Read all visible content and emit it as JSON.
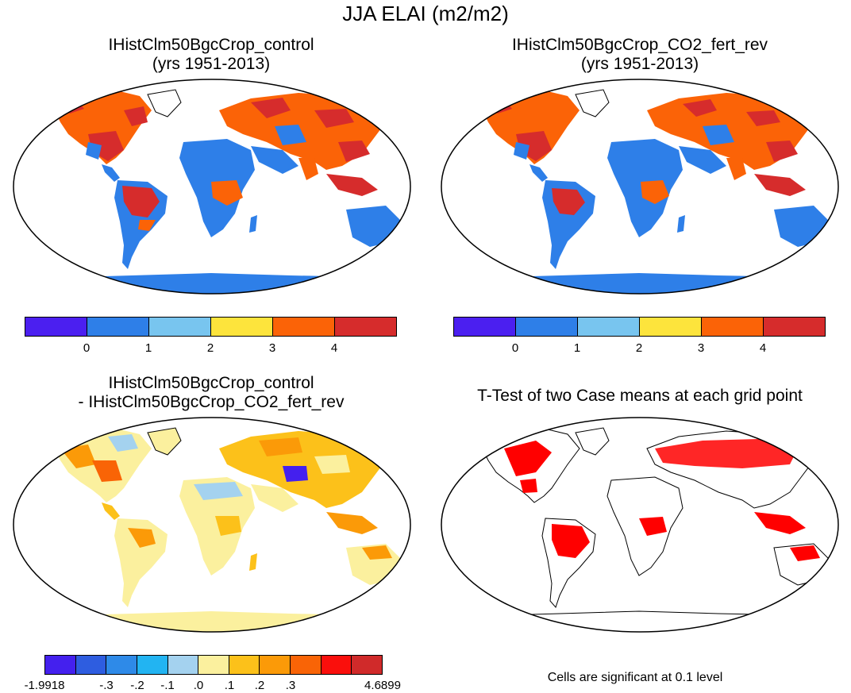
{
  "title": "JJA ELAI (m2/m2)",
  "panels": [
    {
      "id": "control",
      "title_line1": "IHistClm50BgcCrop_control",
      "title_line2": "(yrs 1951-2013)"
    },
    {
      "id": "co2",
      "title_line1": "IHistClm50BgcCrop_CO2_fert_rev",
      "title_line2": "(yrs 1951-2013)"
    },
    {
      "id": "diff",
      "title_line1": "IHistClm50BgcCrop_control",
      "title_line2": "- IHistClm50BgcCrop_CO2_fert_rev"
    },
    {
      "id": "ttest",
      "title_line1": "T-Test of two Case means at each grid point"
    }
  ],
  "colorbar_main": {
    "colors": [
      "#4b1ff0",
      "#2e7fe8",
      "#78c5ef",
      "#fde43c",
      "#fb6307",
      "#d62c2c"
    ],
    "labels": [
      "0",
      "1",
      "2",
      "3",
      "4"
    ]
  },
  "colorbar_diff": {
    "colors": [
      "#4420ee",
      "#2e5de0",
      "#2e8ae8",
      "#22b4f2",
      "#a4d2ef",
      "#fbf09e",
      "#fcc11a",
      "#fb9a08",
      "#f96406",
      "#fa0f0c",
      "#d02a2a"
    ],
    "labels": [
      "-1.9918",
      "-.3",
      "-.2",
      "-.1",
      ".0",
      ".1",
      ".2",
      ".3",
      "4.6899"
    ]
  },
  "significance_note": "Cells are significant at 0.1 level",
  "chart_data": {
    "type": "map",
    "projection": "Robinson",
    "season": "JJA",
    "variable": "ELAI",
    "units": "m2/m2",
    "maps": [
      {
        "panel": "control",
        "colorbar": "colorbar_main"
      },
      {
        "panel": "co2",
        "colorbar": "colorbar_main"
      },
      {
        "panel": "diff",
        "colorbar": "colorbar_diff"
      },
      {
        "panel": "ttest",
        "significance_color": "#ff0000"
      }
    ]
  }
}
